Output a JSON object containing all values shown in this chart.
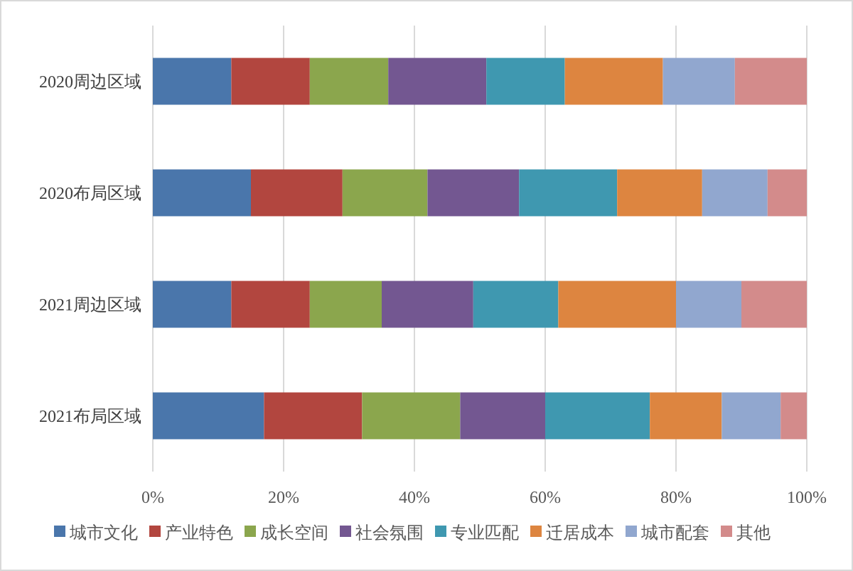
{
  "chart_data": {
    "type": "bar",
    "orientation": "horizontal",
    "stacked": true,
    "categories": [
      "2020周边区域",
      "2020布局区域",
      "2021周边区域",
      "2021布局区域"
    ],
    "series": [
      {
        "name": "城市文化",
        "color": "#4a76ab",
        "values": [
          12,
          15,
          12,
          17
        ]
      },
      {
        "name": "产业特色",
        "color": "#b2463f",
        "values": [
          12,
          14,
          12,
          15
        ]
      },
      {
        "name": "成长空间",
        "color": "#8ba64d",
        "values": [
          12,
          13,
          11,
          15
        ]
      },
      {
        "name": "社会氛围",
        "color": "#735791",
        "values": [
          15,
          14,
          14,
          13
        ]
      },
      {
        "name": "专业匹配",
        "color": "#3f98b0",
        "values": [
          12,
          15,
          13,
          16
        ]
      },
      {
        "name": "迁居成本",
        "color": "#dd8540",
        "values": [
          15,
          13,
          18,
          11
        ]
      },
      {
        "name": "城市配套",
        "color": "#91a7cf",
        "values": [
          11,
          10,
          10,
          9
        ]
      },
      {
        "name": "其他",
        "color": "#d38b8b",
        "values": [
          11,
          6,
          10,
          4
        ]
      }
    ],
    "xlim": [
      0,
      100
    ],
    "xticks": [
      {
        "value": 0,
        "label": "0%"
      },
      {
        "value": 20,
        "label": "20%"
      },
      {
        "value": 40,
        "label": "40%"
      },
      {
        "value": 60,
        "label": "60%"
      },
      {
        "value": 80,
        "label": "80%"
      },
      {
        "value": 100,
        "label": "100%"
      }
    ],
    "grid": "x",
    "legend": "bottom"
  }
}
